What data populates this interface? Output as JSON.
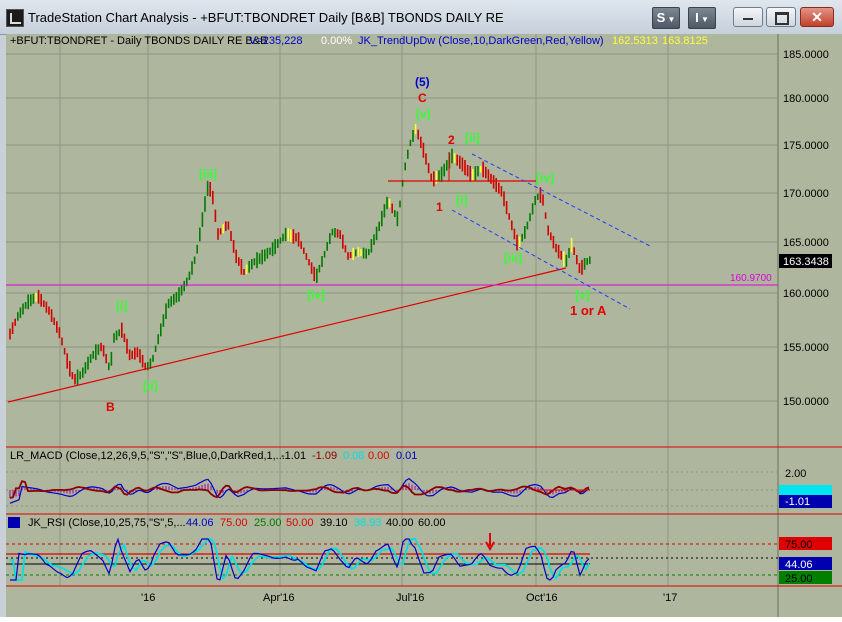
{
  "window": {
    "title": "TradeStation Chart Analysis - +BFUT:TBONDRET Daily [B&B] TBONDS DAILY RE",
    "buttons": [
      "S",
      "I"
    ]
  },
  "price_pane": {
    "header_symbol": "+BFUT:TBONDRET - Daily  TBONDS DAILY RE  B&B",
    "header_volume": "V=235,228",
    "header_change": "0.00%",
    "header_indicator": "JK_TrendUpDw (Close,10,DarkGreen,Red,Yellow)",
    "header_v1": "162.5313",
    "header_v2": "163.8125",
    "last_price": "163.3438",
    "hline_value": "160.9700",
    "axis_ticks": [
      "185.0000",
      "180.0000",
      "175.0000",
      "170.0000",
      "165.0000",
      "160.0000",
      "155.0000",
      "150.0000"
    ],
    "annotations": [
      "B",
      "[i]",
      "[ii]",
      "[iii]",
      "[iv]",
      "(5)",
      "C",
      "[v]",
      "2",
      "[ii]",
      "1",
      "[i]",
      "[iii]",
      "[iv]",
      "[v]",
      "1 or A"
    ]
  },
  "macd_pane": {
    "header": "LR_MACD (Close,12,26,9,5,\"S\",\"S\",Blue,0,DarkRed,1,...",
    "values": [
      "-1.01",
      "-1.09",
      "0.08",
      "0.00",
      "0.01"
    ],
    "axis_ticks": [
      "2.00"
    ],
    "last_value": "-1.01"
  },
  "rsi_pane": {
    "header": "JK_RSI (Close,10,25,75,\"S\",5,...",
    "values": [
      "44.06",
      "75.00",
      "25.00",
      "50.00",
      "39.10",
      "38.93",
      "40.00",
      "60.00"
    ],
    "axis_labels": [
      "75.00",
      "44.06",
      "25.00"
    ]
  },
  "time_axis": [
    "'16",
    "Apr'16",
    "Jul'16",
    "Oct'16",
    "'17"
  ],
  "colors": {
    "background": "#aeb69d",
    "grid": "#8f9783",
    "up_bar": "#ffff33",
    "green_bar": "#007a00",
    "red_bar": "#d00000",
    "trendline": "#e00000",
    "channel": "#1e3cff",
    "magenta": "#e000e0",
    "label_green": "#33ff33",
    "label_red": "#e00000",
    "label_blue": "#0000cc"
  }
}
